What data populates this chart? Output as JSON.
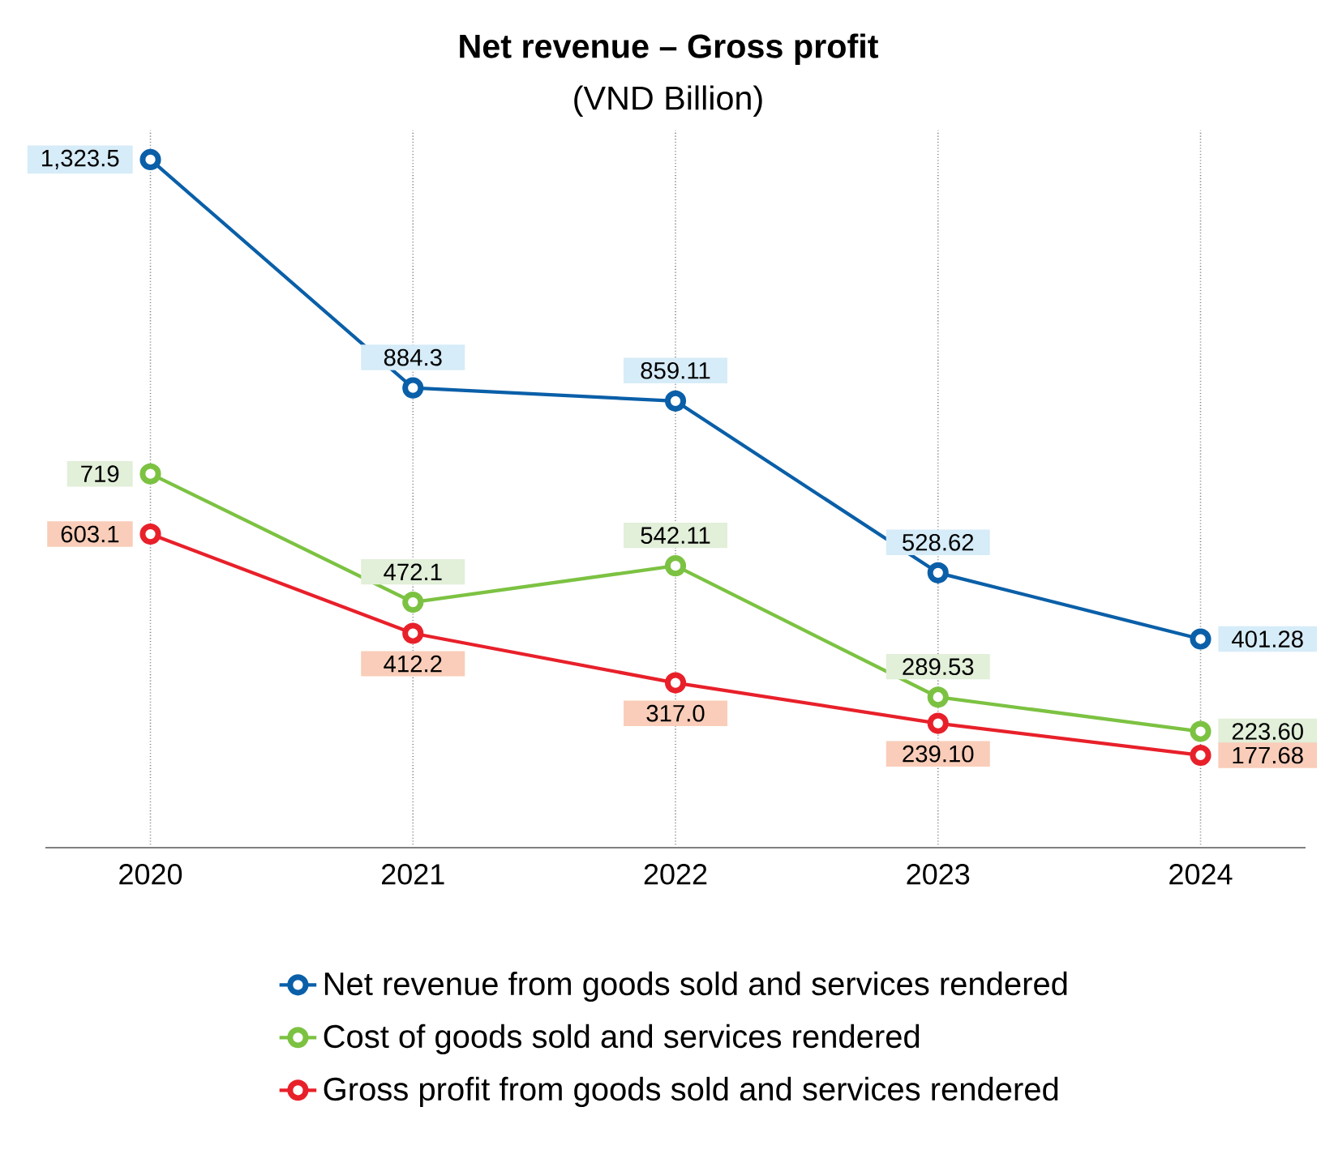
{
  "chart_data": {
    "type": "line",
    "title": "**Net revenue – Gross profit**",
    "subtitle": "(VND Billion)",
    "categories": [
      "2020",
      "2021",
      "2022",
      "2023",
      "2024"
    ],
    "series": [
      {
        "name": "Net revenue from goods sold and services rendered",
        "color": "#0a5fa8",
        "values": [
          1323.5,
          884.3,
          859.11,
          528.62,
          401.28
        ],
        "value_labels": [
          "1,323.5",
          "884.3",
          "859.11",
          "528.62",
          "401.28"
        ]
      },
      {
        "name": "Cost of goods sold and services rendered",
        "color": "#7cc242",
        "values": [
          719,
          472.1,
          542.11,
          289.53,
          223.6
        ],
        "value_labels": [
          "719",
          "472.1",
          "542.11",
          "289.53",
          "223.60"
        ]
      },
      {
        "name": "Gross profit from goods sold and services rendered",
        "color": "#e8202a",
        "values": [
          603.1,
          412.2,
          317.0,
          239.1,
          177.68
        ],
        "value_labels": [
          "603.1",
          "412.2",
          "317.0",
          "239.10",
          "177.68"
        ]
      }
    ],
    "ylim": [
      0,
      1380
    ],
    "grid": "x",
    "legend": "bottom",
    "marker": "circle"
  }
}
